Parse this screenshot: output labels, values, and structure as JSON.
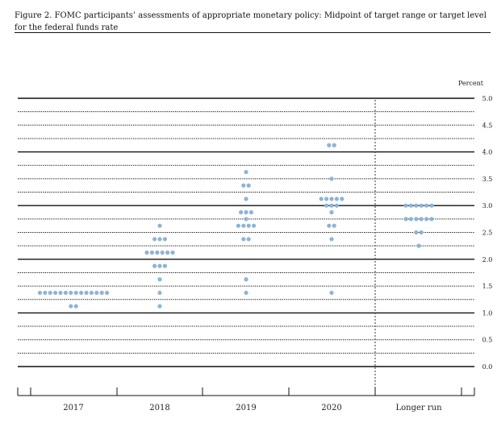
{
  "chart_data": {
    "type": "scatter",
    "title": "Figure 2. FOMC participants’ assessments of appropriate monetary policy: Midpoint of target range or target level for the federal funds rate",
    "ylabel": "Percent",
    "ylim": [
      0,
      5
    ],
    "yticks": [
      "0.0",
      "0.5",
      "1.0",
      "1.5",
      "2.0",
      "2.5",
      "3.0",
      "3.5",
      "4.0",
      "4.5",
      "5.0"
    ],
    "categories": [
      "2017",
      "2018",
      "2019",
      "2020",
      "Longer run"
    ],
    "dot_color": "#8fb3d6",
    "dots": [
      {
        "category": "2017",
        "values": [
          {
            "y": 1.375,
            "count": 14
          },
          {
            "y": 1.125,
            "count": 2
          }
        ]
      },
      {
        "category": "2018",
        "values": [
          {
            "y": 2.625,
            "count": 1
          },
          {
            "y": 2.375,
            "count": 3
          },
          {
            "y": 2.125,
            "count": 6
          },
          {
            "y": 1.875,
            "count": 3
          },
          {
            "y": 1.625,
            "count": 1
          },
          {
            "y": 1.375,
            "count": 1
          },
          {
            "y": 1.125,
            "count": 1
          }
        ]
      },
      {
        "category": "2019",
        "values": [
          {
            "y": 3.625,
            "count": 1
          },
          {
            "y": 3.375,
            "count": 2
          },
          {
            "y": 3.125,
            "count": 1
          },
          {
            "y": 2.875,
            "count": 3
          },
          {
            "y": 2.75,
            "count": 1
          },
          {
            "y": 2.625,
            "count": 4
          },
          {
            "y": 2.375,
            "count": 2
          },
          {
            "y": 1.625,
            "count": 1
          },
          {
            "y": 1.375,
            "count": 1
          }
        ]
      },
      {
        "category": "2020",
        "values": [
          {
            "y": 4.125,
            "count": 2
          },
          {
            "y": 3.5,
            "count": 1
          },
          {
            "y": 3.125,
            "count": 5
          },
          {
            "y": 3.0,
            "count": 3
          },
          {
            "y": 2.875,
            "count": 1
          },
          {
            "y": 2.625,
            "count": 2
          },
          {
            "y": 2.375,
            "count": 1
          },
          {
            "y": 1.375,
            "count": 1
          }
        ]
      },
      {
        "category": "Longer run",
        "values": [
          {
            "y": 3.0,
            "count": 6
          },
          {
            "y": 2.75,
            "count": 6
          },
          {
            "y": 2.5,
            "count": 2
          },
          {
            "y": 2.25,
            "count": 1
          }
        ]
      }
    ]
  }
}
